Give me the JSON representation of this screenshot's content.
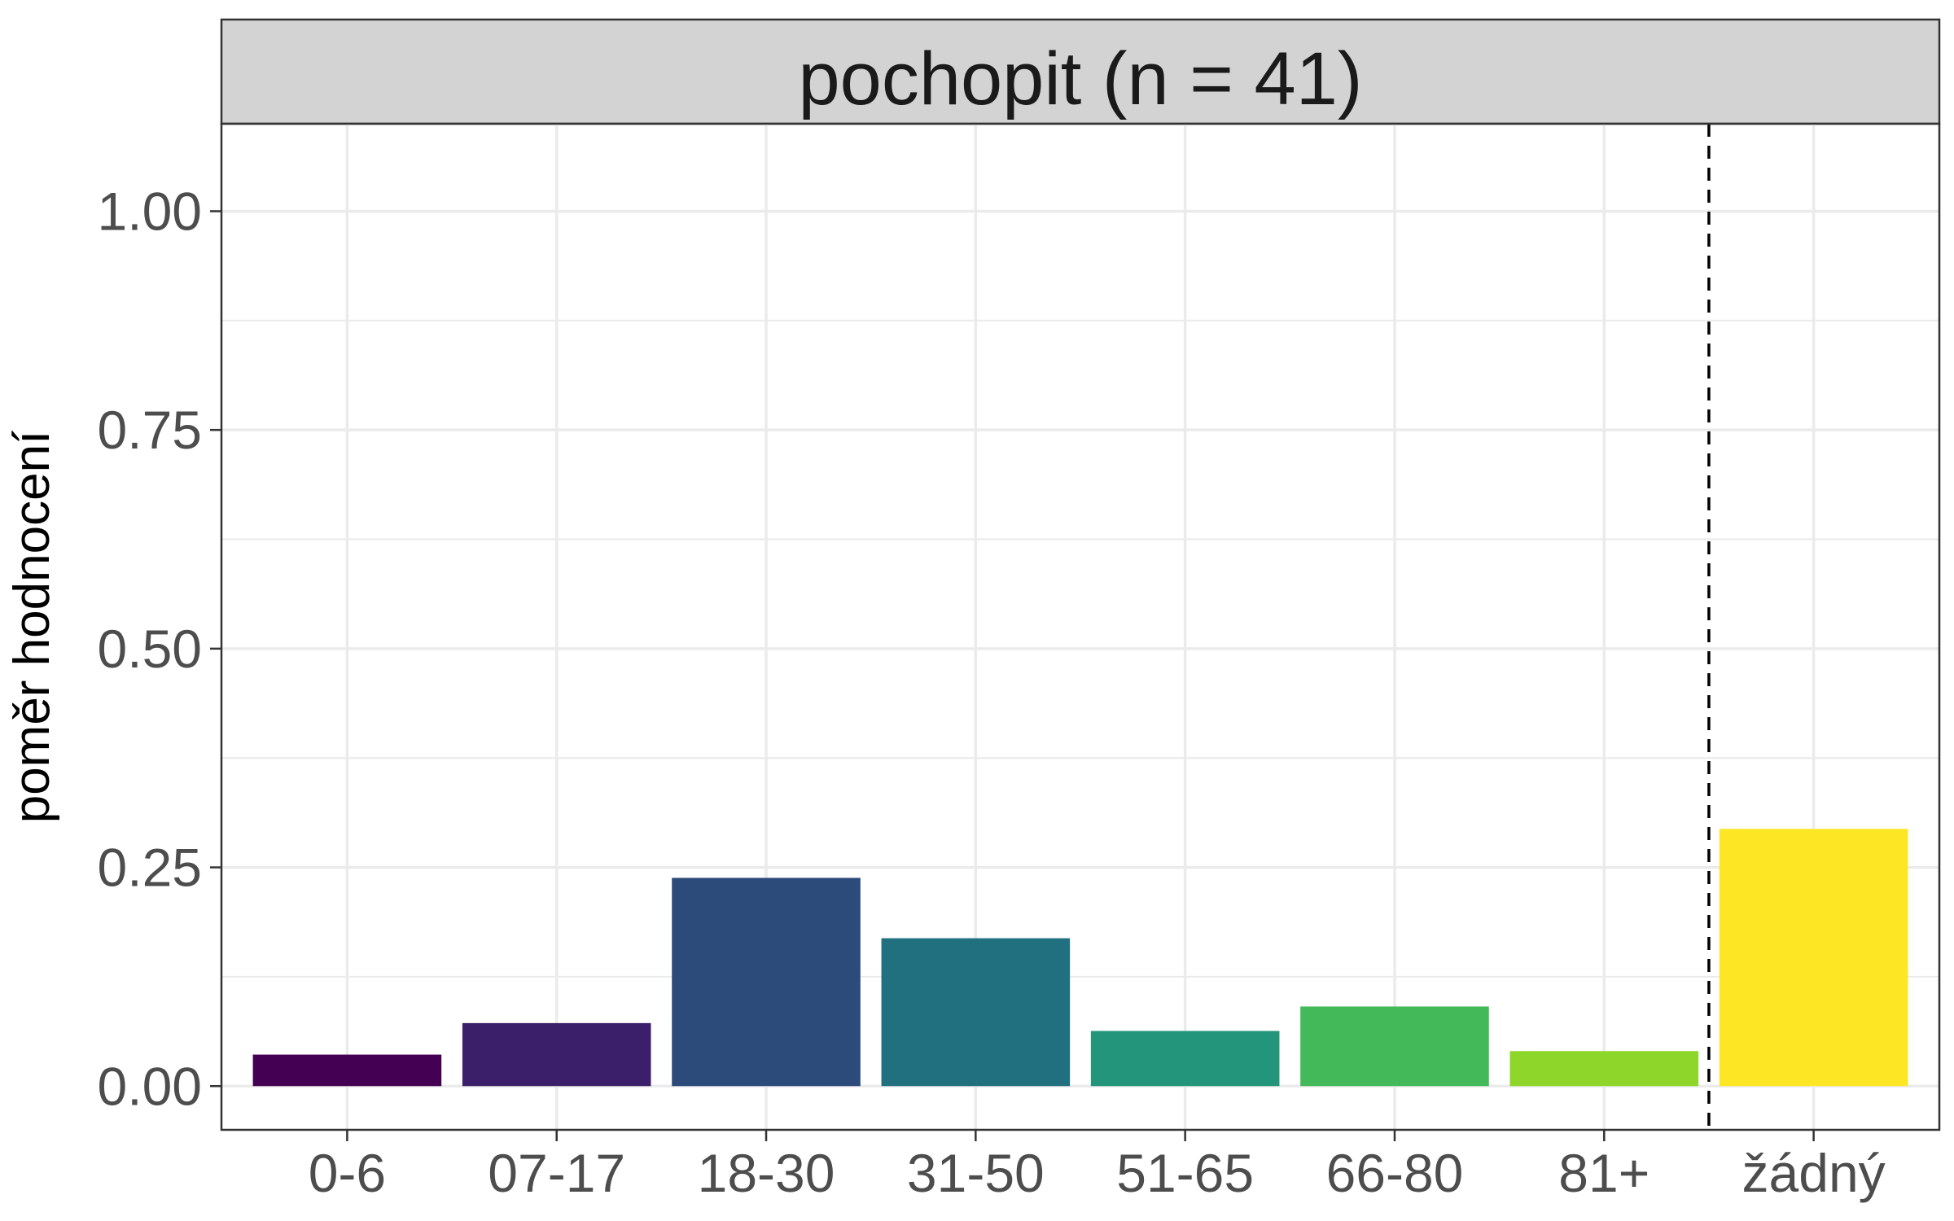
{
  "chart_data": {
    "type": "bar",
    "title": "pochopit (n = 41)",
    "xlabel": "",
    "ylabel": "poměr hodnocení",
    "categories": [
      "0-6",
      "07-17",
      "18-30",
      "31-50",
      "51-65",
      "66-80",
      "81+",
      "žádný"
    ],
    "values": [
      0.036,
      0.072,
      0.238,
      0.169,
      0.063,
      0.091,
      0.04,
      0.294
    ],
    "colors": [
      "#440154",
      "#3b1f6b",
      "#2c4a7a",
      "#21707f",
      "#22957a",
      "#44b95a",
      "#8fd62b",
      "#fde725"
    ],
    "ylim": [
      -0.05,
      1.1
    ],
    "yticks": [
      0,
      0.25,
      0.5,
      0.75,
      1.0
    ],
    "ytick_labels": [
      "0.00",
      "0.25",
      "0.50",
      "0.75",
      "1.00"
    ],
    "reference_line": {
      "between": [
        "81+",
        "žádný"
      ],
      "style": "dashed"
    },
    "grid": true,
    "legend": "none"
  }
}
